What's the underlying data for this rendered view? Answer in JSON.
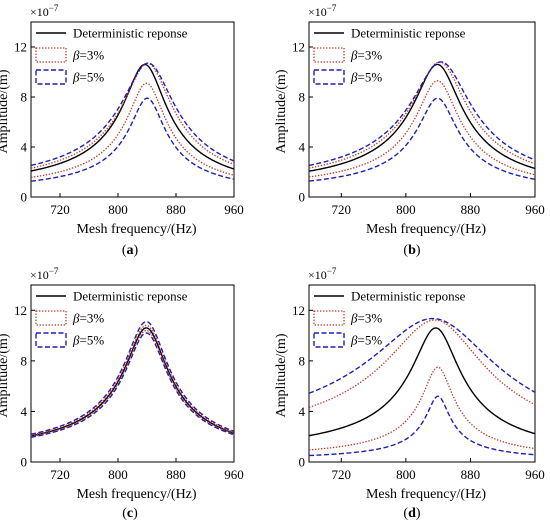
{
  "chart_data": [
    {
      "panel": "(a)",
      "type": "line",
      "scale_label": "×10",
      "scale_exponent": "−7",
      "xlabel": "Mesh frequency/(Hz)",
      "ylabel": "Amplitude/(m)",
      "xlim": [
        680,
        960
      ],
      "ylim": [
        0,
        14
      ],
      "xticks": [
        720,
        800,
        880,
        960
      ],
      "yticks": [
        0,
        4,
        8,
        12
      ],
      "grid": false,
      "legend_position": "top-left",
      "legend": [
        {
          "label": "Deterministic reponse",
          "greek": "",
          "suffix": "",
          "style": "solid",
          "color": "#000000"
        },
        {
          "label": "",
          "greek": "β",
          "suffix": "=3%",
          "style": "dotted",
          "color": "#c0392b"
        },
        {
          "label": "",
          "greek": "β",
          "suffix": "=5%",
          "style": "dashed",
          "color": "#1f1fb4"
        }
      ],
      "series": [
        {
          "role": "deterministic",
          "f0": 838,
          "zeta": 0.034,
          "peak": 10.6
        },
        {
          "role": "beta3_upper",
          "f0": 842,
          "zeta": 0.038,
          "peak": 10.7
        },
        {
          "role": "beta3_lower",
          "f0": 840,
          "zeta": 0.03,
          "peak": 9.1
        },
        {
          "role": "beta5_upper",
          "f0": 843,
          "zeta": 0.042,
          "peak": 10.7
        },
        {
          "role": "beta5_lower",
          "f0": 841,
          "zeta": 0.028,
          "peak": 7.9
        }
      ]
    },
    {
      "panel": "(b)",
      "type": "line",
      "scale_label": "×10",
      "scale_exponent": "−7",
      "xlabel": "Mesh frequency/(Hz)",
      "ylabel": "Amplitude/(m)",
      "xlim": [
        680,
        960
      ],
      "ylim": [
        0,
        14
      ],
      "xticks": [
        720,
        800,
        880,
        960
      ],
      "yticks": [
        0,
        4,
        8,
        12
      ],
      "grid": false,
      "legend_position": "top-left",
      "legend": [
        {
          "label": "Deterministic reponse",
          "greek": "",
          "suffix": "",
          "style": "solid",
          "color": "#000000"
        },
        {
          "label": "",
          "greek": "β",
          "suffix": "=3%",
          "style": "dotted",
          "color": "#c0392b"
        },
        {
          "label": "",
          "greek": "β",
          "suffix": "=5%",
          "style": "dashed",
          "color": "#1f1fb4"
        }
      ],
      "series": [
        {
          "role": "deterministic",
          "f0": 840,
          "zeta": 0.034,
          "peak": 10.6
        },
        {
          "role": "beta3_upper",
          "f0": 843,
          "zeta": 0.038,
          "peak": 10.8
        },
        {
          "role": "beta3_lower",
          "f0": 840,
          "zeta": 0.03,
          "peak": 9.3
        },
        {
          "role": "beta5_upper",
          "f0": 845,
          "zeta": 0.042,
          "peak": 10.8
        },
        {
          "role": "beta5_lower",
          "f0": 840,
          "zeta": 0.028,
          "peak": 7.9
        }
      ]
    },
    {
      "panel": "(c)",
      "type": "line",
      "scale_label": "×10",
      "scale_exponent": "−7",
      "xlabel": "Mesh frequency/(Hz)",
      "ylabel": "Amplitude/(m)",
      "xlim": [
        680,
        960
      ],
      "ylim": [
        0,
        14
      ],
      "xticks": [
        720,
        800,
        880,
        960
      ],
      "yticks": [
        0,
        4,
        8,
        12
      ],
      "grid": false,
      "legend_position": "top-left",
      "legend": [
        {
          "label": "Deterministic reponse",
          "greek": "",
          "suffix": "",
          "style": "solid",
          "color": "#000000"
        },
        {
          "label": "",
          "greek": "β",
          "suffix": "=3%",
          "style": "dotted",
          "color": "#c0392b"
        },
        {
          "label": "",
          "greek": "β",
          "suffix": "=5%",
          "style": "dashed",
          "color": "#1f1fb4"
        }
      ],
      "series": [
        {
          "role": "deterministic",
          "f0": 840,
          "zeta": 0.034,
          "peak": 10.6
        },
        {
          "role": "beta3_upper",
          "f0": 840,
          "zeta": 0.0343,
          "peak": 10.8
        },
        {
          "role": "beta3_lower",
          "f0": 840,
          "zeta": 0.0337,
          "peak": 10.4
        },
        {
          "role": "beta5_upper",
          "f0": 840,
          "zeta": 0.0346,
          "peak": 11.1
        },
        {
          "role": "beta5_lower",
          "f0": 840,
          "zeta": 0.0334,
          "peak": 10.2
        }
      ]
    },
    {
      "panel": "(d)",
      "type": "line",
      "scale_label": "×10",
      "scale_exponent": "−7",
      "xlabel": "Mesh frequency/(Hz)",
      "ylabel": "Amplitude/(m)",
      "xlim": [
        680,
        960
      ],
      "ylim": [
        0,
        14
      ],
      "xticks": [
        720,
        800,
        880,
        960
      ],
      "yticks": [
        0,
        4,
        8,
        12
      ],
      "grid": false,
      "legend_position": "top-left",
      "legend": [
        {
          "label": "Deterministic reponse",
          "greek": "",
          "suffix": "",
          "style": "solid",
          "color": "#000000"
        },
        {
          "label": "",
          "greek": "β",
          "suffix": "=3%",
          "style": "dotted",
          "color": "#c0392b"
        },
        {
          "label": "",
          "greek": "β",
          "suffix": "=5%",
          "style": "dashed",
          "color": "#1f1fb4"
        }
      ],
      "series": [
        {
          "role": "deterministic",
          "f0": 838,
          "zeta": 0.034,
          "peak": 10.6
        },
        {
          "role": "beta3_upper",
          "f0": 840,
          "zeta": 0.07,
          "peak": 11.2
        },
        {
          "role": "beta3_lower",
          "f0": 840,
          "zeta": 0.022,
          "peak": 7.5
        },
        {
          "role": "beta5_upper",
          "f0": 840,
          "zeta": 0.09,
          "peak": 11.3
        },
        {
          "role": "beta5_lower",
          "f0": 840,
          "zeta": 0.017,
          "peak": 5.2
        }
      ]
    }
  ]
}
